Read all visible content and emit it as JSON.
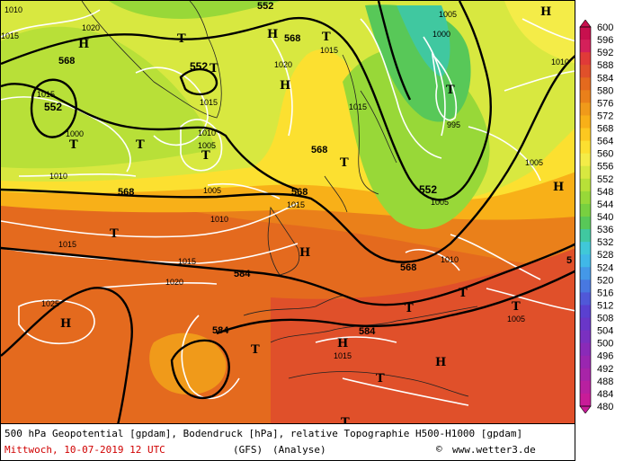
{
  "footer": {
    "description": "500 hPa Geopotential [gpdam], Bodendruck [hPa], relative Topographie H500-H1000 [gpdam]",
    "datetime": "Mittwoch, 10-07-2019  12 UTC",
    "model": "(GFS)",
    "mode": "(Analyse)",
    "copyright_symbol": "©",
    "site": "www.wetter3.de"
  },
  "colors": {
    "frame": "#000000",
    "date_text": "#d00000",
    "isobar": "#ffffff",
    "geopotential": "#000000"
  },
  "legend": {
    "values": [
      "600",
      "596",
      "592",
      "588",
      "584",
      "580",
      "576",
      "572",
      "568",
      "564",
      "560",
      "556",
      "552",
      "548",
      "544",
      "540",
      "536",
      "532",
      "528",
      "524",
      "520",
      "516",
      "512",
      "508",
      "504",
      "500",
      "496",
      "492",
      "488",
      "484",
      "480"
    ],
    "colors": [
      "#c8104e",
      "#d4205a",
      "#e03a38",
      "#e0502a",
      "#e46a1e",
      "#ea801a",
      "#f09a1a",
      "#f8b018",
      "#fcc820",
      "#fce030",
      "#f4ec48",
      "#d8e840",
      "#b8e038",
      "#98d838",
      "#78d040",
      "#58c858",
      "#40c8a0",
      "#40c8d8",
      "#40b8e8",
      "#4498e8",
      "#4878e0",
      "#5058d8",
      "#5a40d0",
      "#6a36c8",
      "#7a30c0",
      "#8a2ab8",
      "#9a26b0",
      "#a824a8",
      "#b820a0",
      "#c81c98"
    ]
  },
  "map": {
    "geopotential_labels": [
      {
        "text": "568"
      },
      {
        "text": "552"
      },
      {
        "text": "552"
      },
      {
        "text": "568"
      },
      {
        "text": "568"
      },
      {
        "text": "568"
      },
      {
        "text": "552"
      },
      {
        "text": "568"
      },
      {
        "text": "584"
      },
      {
        "text": "584"
      },
      {
        "text": "584"
      },
      {
        "text": "552"
      },
      {
        "text": "568"
      },
      {
        "text": "5"
      }
    ],
    "pressure_labels": [
      {
        "text": "1020"
      },
      {
        "text": "1015"
      },
      {
        "text": "1000"
      },
      {
        "text": "1015"
      },
      {
        "text": "1010"
      },
      {
        "text": "1005"
      },
      {
        "text": "1010"
      },
      {
        "text": "1015"
      },
      {
        "text": "1020"
      },
      {
        "text": "1015"
      },
      {
        "text": "1010"
      },
      {
        "text": "1005"
      },
      {
        "text": "1000"
      },
      {
        "text": "995"
      },
      {
        "text": "1005"
      },
      {
        "text": "1015"
      },
      {
        "text": "1010"
      },
      {
        "text": "1015"
      },
      {
        "text": "1020"
      },
      {
        "text": "1025"
      },
      {
        "text": "1015"
      },
      {
        "text": "1005"
      },
      {
        "text": "1010"
      },
      {
        "text": "1015"
      },
      {
        "text": "1005"
      },
      {
        "text": "1010"
      },
      {
        "text": "1005"
      },
      {
        "text": "1015"
      }
    ],
    "pressure_centers": [
      {
        "text": "H"
      },
      {
        "text": "T"
      },
      {
        "text": "T"
      },
      {
        "text": "T"
      },
      {
        "text": "H"
      },
      {
        "text": "T"
      },
      {
        "text": "T"
      },
      {
        "text": "T"
      },
      {
        "text": "T"
      },
      {
        "text": "H"
      },
      {
        "text": "T"
      },
      {
        "text": "H"
      },
      {
        "text": "T"
      },
      {
        "text": "H"
      },
      {
        "text": "T"
      },
      {
        "text": "T"
      },
      {
        "text": "H"
      },
      {
        "text": "T"
      },
      {
        "text": "T"
      },
      {
        "text": "H"
      },
      {
        "text": "T"
      },
      {
        "text": "H"
      },
      {
        "text": "H"
      },
      {
        "text": "T"
      }
    ]
  }
}
